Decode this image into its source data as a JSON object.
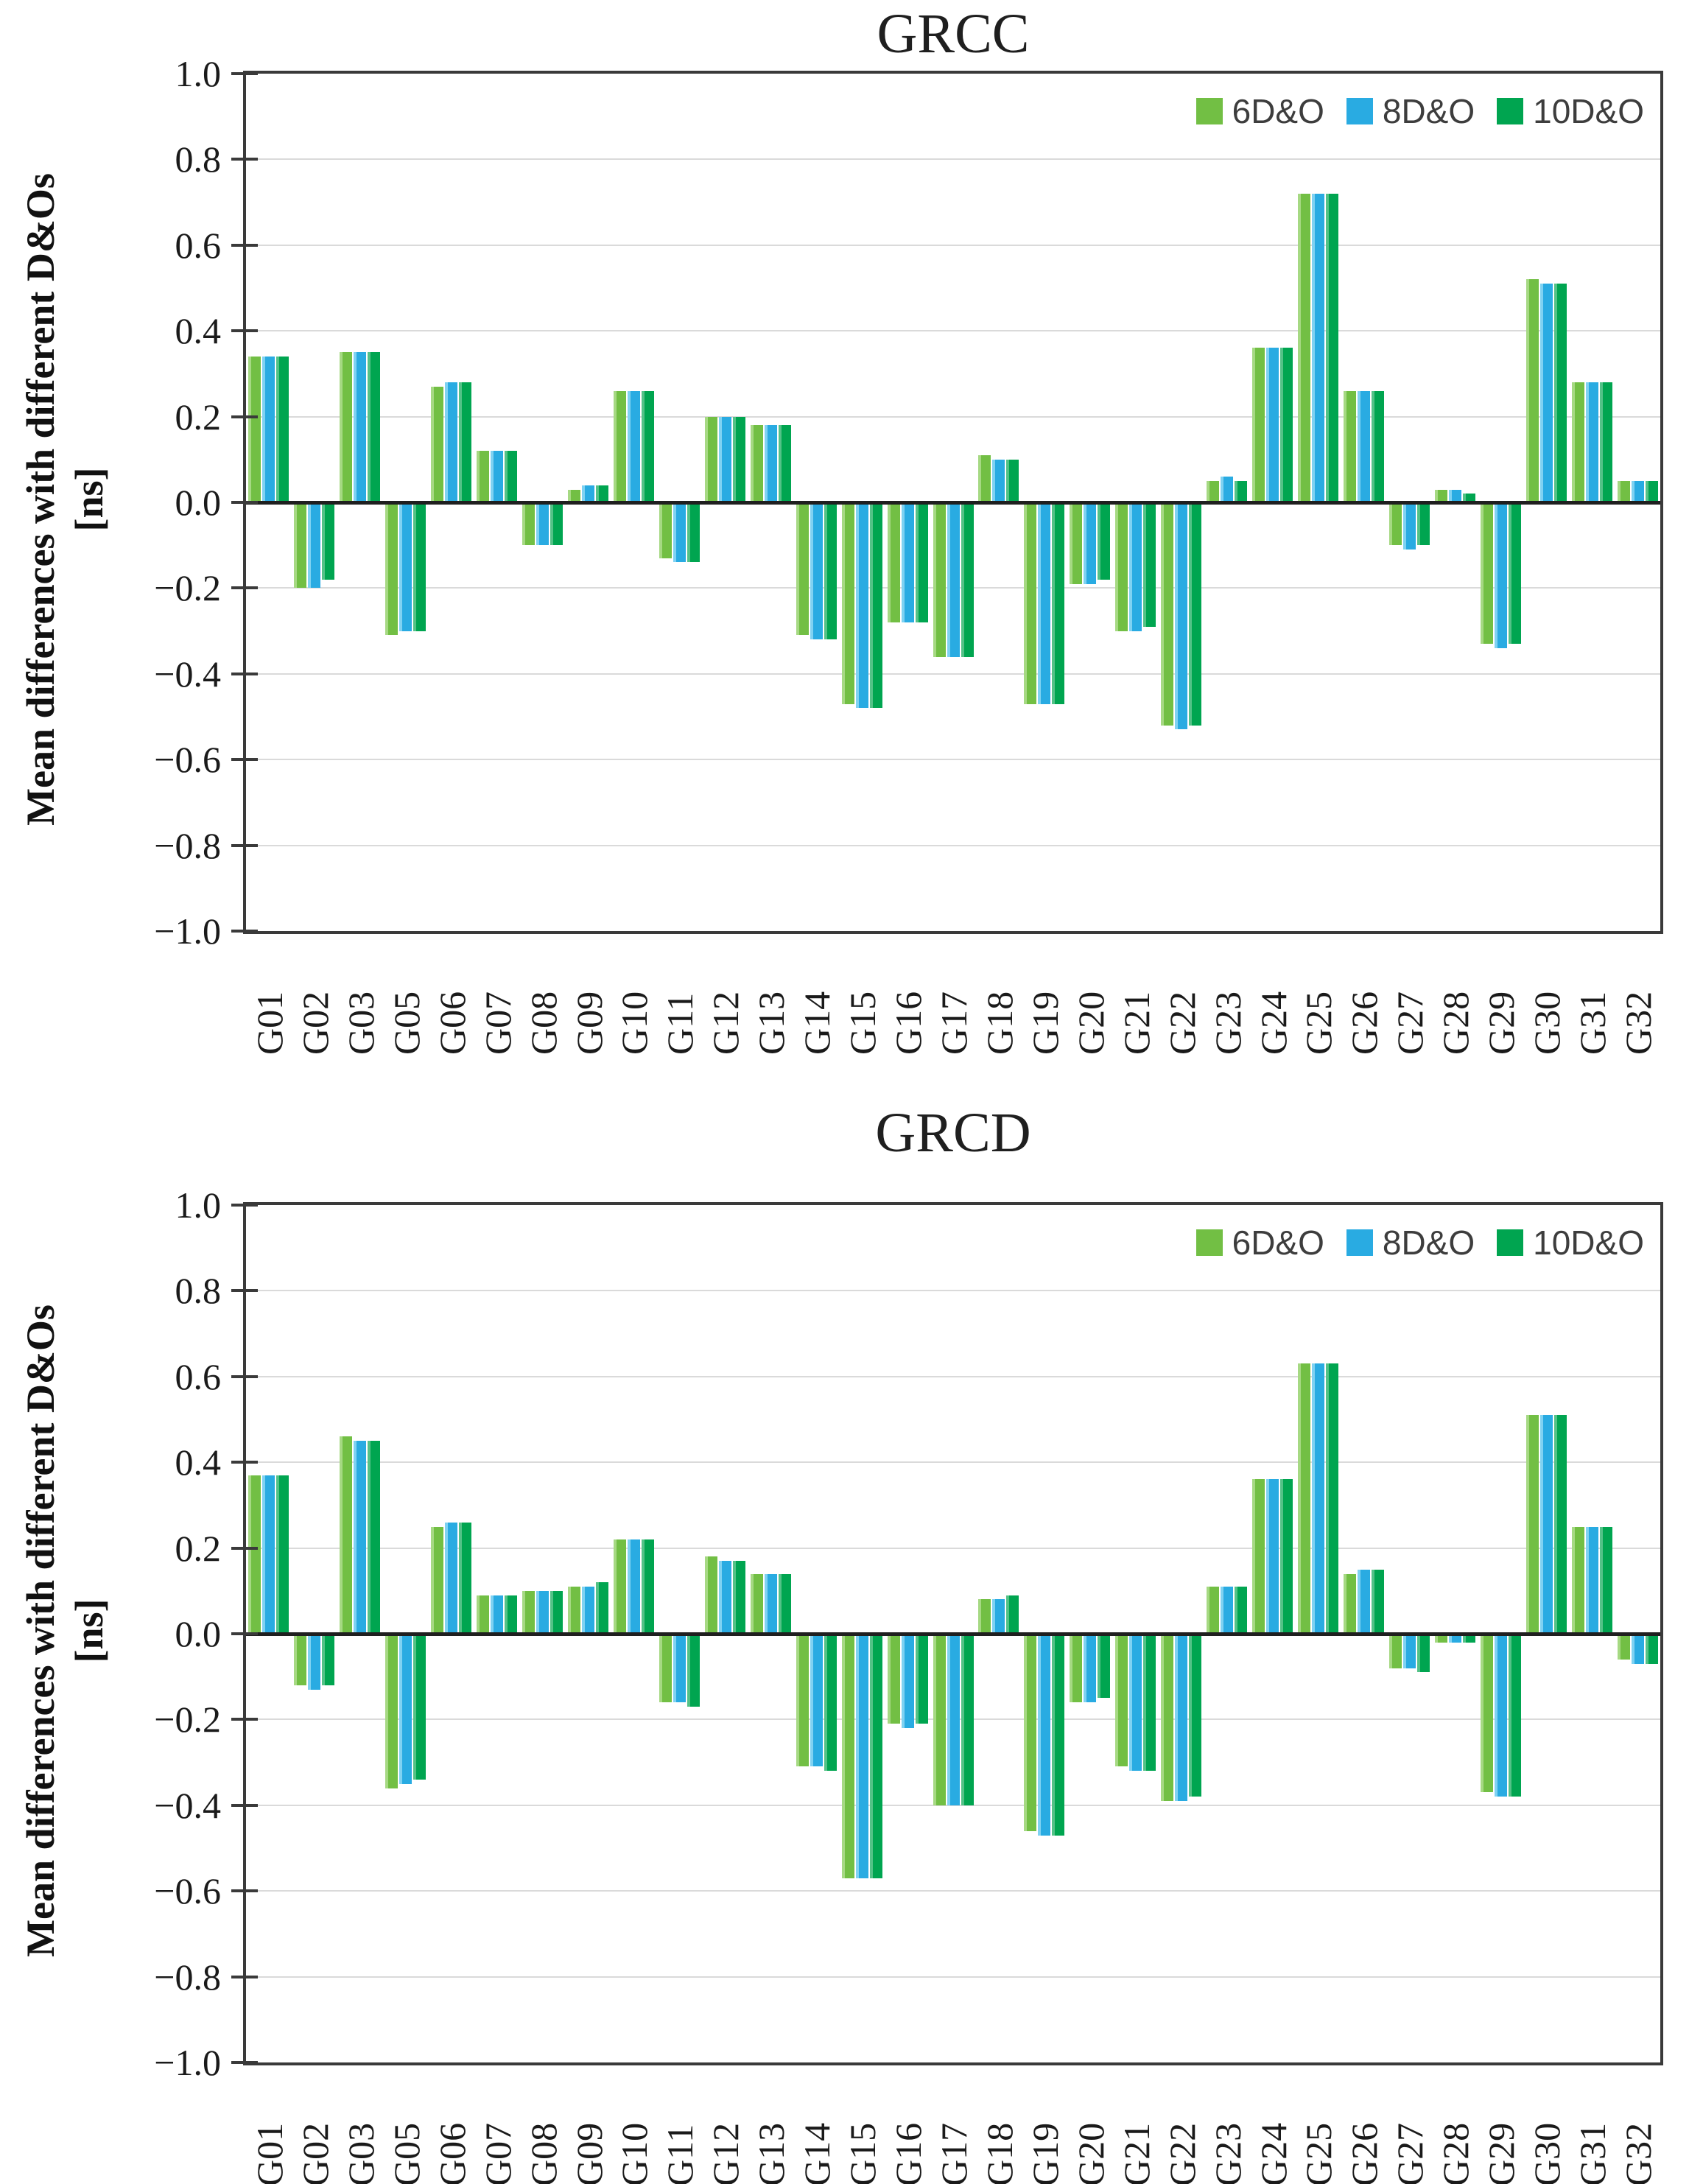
{
  "figure": {
    "y_axis_label": "Mean differences with different D&Os",
    "y_axis_units": "[ns]"
  },
  "chart_data": [
    {
      "type": "bar",
      "title": "GRCC",
      "ylabel": "Mean differences with different D&Os",
      "ylabel_units": "[ns]",
      "xlabel": "",
      "ylim": [
        -1.0,
        1.0
      ],
      "y_tick_step": 0.2,
      "grid": true,
      "legend_position": "top-right-inside",
      "y_ticks": [
        "1.0",
        "0.8",
        "0.6",
        "0.4",
        "0.2",
        "0.0",
        "−0.2",
        "−0.4",
        "−0.6",
        "−0.8",
        "−1.0"
      ],
      "categories": [
        "G01",
        "G02",
        "G03",
        "G05",
        "G06",
        "G07",
        "G08",
        "G09",
        "G10",
        "G11",
        "G12",
        "G13",
        "G14",
        "G15",
        "G16",
        "G17",
        "G18",
        "G19",
        "G20",
        "G21",
        "G22",
        "G23",
        "G24",
        "G25",
        "G26",
        "G27",
        "G28",
        "G29",
        "G30",
        "G31",
        "G32"
      ],
      "series": [
        {
          "name": "6D&O",
          "color": "#72BF44",
          "highlight": "#A6D983",
          "values": [
            0.34,
            -0.2,
            0.35,
            -0.31,
            0.27,
            0.12,
            -0.1,
            0.03,
            0.26,
            -0.13,
            0.2,
            0.18,
            -0.31,
            -0.47,
            -0.28,
            -0.36,
            0.11,
            -0.47,
            -0.19,
            -0.3,
            -0.52,
            0.05,
            0.36,
            0.72,
            0.26,
            -0.1,
            0.03,
            -0.33,
            0.52,
            0.28,
            0.05
          ]
        },
        {
          "name": "8D&O",
          "color": "#29ABE2",
          "highlight": "#7FD2F2",
          "values": [
            0.34,
            -0.2,
            0.35,
            -0.3,
            0.28,
            0.12,
            -0.1,
            0.04,
            0.26,
            -0.14,
            0.2,
            0.18,
            -0.32,
            -0.48,
            -0.28,
            -0.36,
            0.1,
            -0.47,
            -0.19,
            -0.3,
            -0.53,
            0.06,
            0.36,
            0.72,
            0.26,
            -0.11,
            0.03,
            -0.34,
            0.51,
            0.28,
            0.05
          ]
        },
        {
          "name": "10D&O",
          "color": "#00A550",
          "highlight": "#53C287",
          "values": [
            0.34,
            -0.18,
            0.35,
            -0.3,
            0.28,
            0.12,
            -0.1,
            0.04,
            0.26,
            -0.14,
            0.2,
            0.18,
            -0.32,
            -0.48,
            -0.28,
            -0.36,
            0.1,
            -0.47,
            -0.18,
            -0.29,
            -0.52,
            0.05,
            0.36,
            0.72,
            0.26,
            -0.1,
            0.02,
            -0.33,
            0.51,
            0.28,
            0.05
          ]
        }
      ]
    },
    {
      "type": "bar",
      "title": "GRCD",
      "ylabel": "Mean differences with different D&Os",
      "ylabel_units": "[ns]",
      "xlabel": "",
      "ylim": [
        -1.0,
        1.0
      ],
      "y_tick_step": 0.2,
      "grid": true,
      "legend_position": "top-right-inside",
      "y_ticks": [
        "1.0",
        "0.8",
        "0.6",
        "0.4",
        "0.2",
        "0.0",
        "−0.2",
        "−0.4",
        "−0.6",
        "−0.8",
        "−1.0"
      ],
      "categories": [
        "G01",
        "G02",
        "G03",
        "G05",
        "G06",
        "G07",
        "G08",
        "G09",
        "G10",
        "G11",
        "G12",
        "G13",
        "G14",
        "G15",
        "G16",
        "G17",
        "G18",
        "G19",
        "G20",
        "G21",
        "G22",
        "G23",
        "G24",
        "G25",
        "G26",
        "G27",
        "G28",
        "G29",
        "G30",
        "G31",
        "G32"
      ],
      "series": [
        {
          "name": "6D&O",
          "color": "#72BF44",
          "highlight": "#A6D983",
          "values": [
            0.37,
            -0.12,
            0.46,
            -0.36,
            0.25,
            0.09,
            0.1,
            0.11,
            0.22,
            -0.16,
            0.18,
            0.14,
            -0.31,
            -0.57,
            -0.21,
            -0.4,
            0.08,
            -0.46,
            -0.16,
            -0.31,
            -0.39,
            0.11,
            0.36,
            0.63,
            0.14,
            -0.08,
            -0.02,
            -0.37,
            0.51,
            0.25,
            -0.06
          ]
        },
        {
          "name": "8D&O",
          "color": "#29ABE2",
          "highlight": "#7FD2F2",
          "values": [
            0.37,
            -0.13,
            0.45,
            -0.35,
            0.26,
            0.09,
            0.1,
            0.11,
            0.22,
            -0.16,
            0.17,
            0.14,
            -0.31,
            -0.57,
            -0.22,
            -0.4,
            0.08,
            -0.47,
            -0.16,
            -0.32,
            -0.39,
            0.11,
            0.36,
            0.63,
            0.15,
            -0.08,
            -0.02,
            -0.38,
            0.51,
            0.25,
            -0.07
          ]
        },
        {
          "name": "10D&O",
          "color": "#00A550",
          "highlight": "#53C287",
          "values": [
            0.37,
            -0.12,
            0.45,
            -0.34,
            0.26,
            0.09,
            0.1,
            0.12,
            0.22,
            -0.17,
            0.17,
            0.14,
            -0.32,
            -0.57,
            -0.21,
            -0.4,
            0.09,
            -0.47,
            -0.15,
            -0.32,
            -0.38,
            0.11,
            0.36,
            0.63,
            0.15,
            -0.09,
            -0.02,
            -0.38,
            0.51,
            0.25,
            -0.07
          ]
        }
      ]
    }
  ]
}
